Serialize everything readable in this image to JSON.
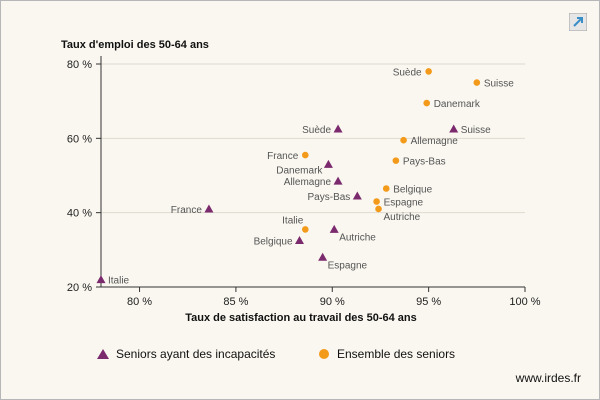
{
  "footer": {
    "source": "www.irdes.fr"
  },
  "colors": {
    "series_1": "#7b2a6e",
    "series_2": "#f39a1b",
    "grid": "#dedad0",
    "axis": "#333333"
  },
  "icons": {
    "corner": "expand-icon"
  },
  "chart_data": {
    "type": "scatter",
    "title": "",
    "xlabel": "Taux de satisfaction au travail des 50-64 ans",
    "ylabel": "Taux d'emploi des 50-64 ans",
    "xlim": [
      78,
      100
    ],
    "ylim": [
      20,
      80
    ],
    "xticks": [
      80,
      85,
      90,
      95,
      100
    ],
    "yticks": [
      20,
      40,
      60,
      80
    ],
    "xtick_labels": [
      "80 %",
      "85 %",
      "90 %",
      "95 %",
      "100 %"
    ],
    "ytick_labels": [
      "20 %",
      "40 %",
      "60 %",
      "80 %"
    ],
    "grid": "horizontal",
    "legend_position": "bottom",
    "series": [
      {
        "name": "Seniors ayant des incapacités",
        "marker": "triangle",
        "points": [
          {
            "label": "Italie",
            "x": 78.0,
            "y": 22.0,
            "label_side": "right"
          },
          {
            "label": "France",
            "x": 83.6,
            "y": 41.0,
            "label_side": "left"
          },
          {
            "label": "Suède",
            "x": 90.3,
            "y": 62.5,
            "label_side": "left"
          },
          {
            "label": "Danemark",
            "x": 89.8,
            "y": 53.0,
            "label_side": "left-below"
          },
          {
            "label": "Allemagne",
            "x": 90.3,
            "y": 48.5,
            "label_side": "left"
          },
          {
            "label": "Pays-Bas",
            "x": 91.3,
            "y": 44.5,
            "label_side": "left"
          },
          {
            "label": "Belgique",
            "x": 88.3,
            "y": 32.5,
            "label_side": "left"
          },
          {
            "label": "Autriche",
            "x": 90.1,
            "y": 35.5,
            "label_side": "right-below"
          },
          {
            "label": "Espagne",
            "x": 89.5,
            "y": 28.0,
            "label_side": "right-below"
          },
          {
            "label": "Suisse",
            "x": 96.3,
            "y": 62.5,
            "label_side": "right"
          }
        ]
      },
      {
        "name": "Ensemble des seniors",
        "marker": "circle",
        "points": [
          {
            "label": "Suède",
            "x": 95.0,
            "y": 78.0,
            "label_side": "left"
          },
          {
            "label": "Suisse",
            "x": 97.5,
            "y": 75.0,
            "label_side": "right"
          },
          {
            "label": "Danemark",
            "x": 94.9,
            "y": 69.5,
            "label_side": "right"
          },
          {
            "label": "Allemagne",
            "x": 93.7,
            "y": 59.5,
            "label_side": "right"
          },
          {
            "label": "France",
            "x": 88.6,
            "y": 55.5,
            "label_side": "left"
          },
          {
            "label": "Pays-Bas",
            "x": 93.3,
            "y": 54.0,
            "label_side": "right"
          },
          {
            "label": "Belgique",
            "x": 92.8,
            "y": 46.5,
            "label_side": "right"
          },
          {
            "label": "Espagne",
            "x": 92.3,
            "y": 43.0,
            "label_side": "right"
          },
          {
            "label": "Autriche",
            "x": 92.4,
            "y": 41.0,
            "label_side": "right-below"
          },
          {
            "label": "Italie",
            "x": 88.6,
            "y": 35.5,
            "label_side": "left-above"
          }
        ]
      }
    ]
  }
}
